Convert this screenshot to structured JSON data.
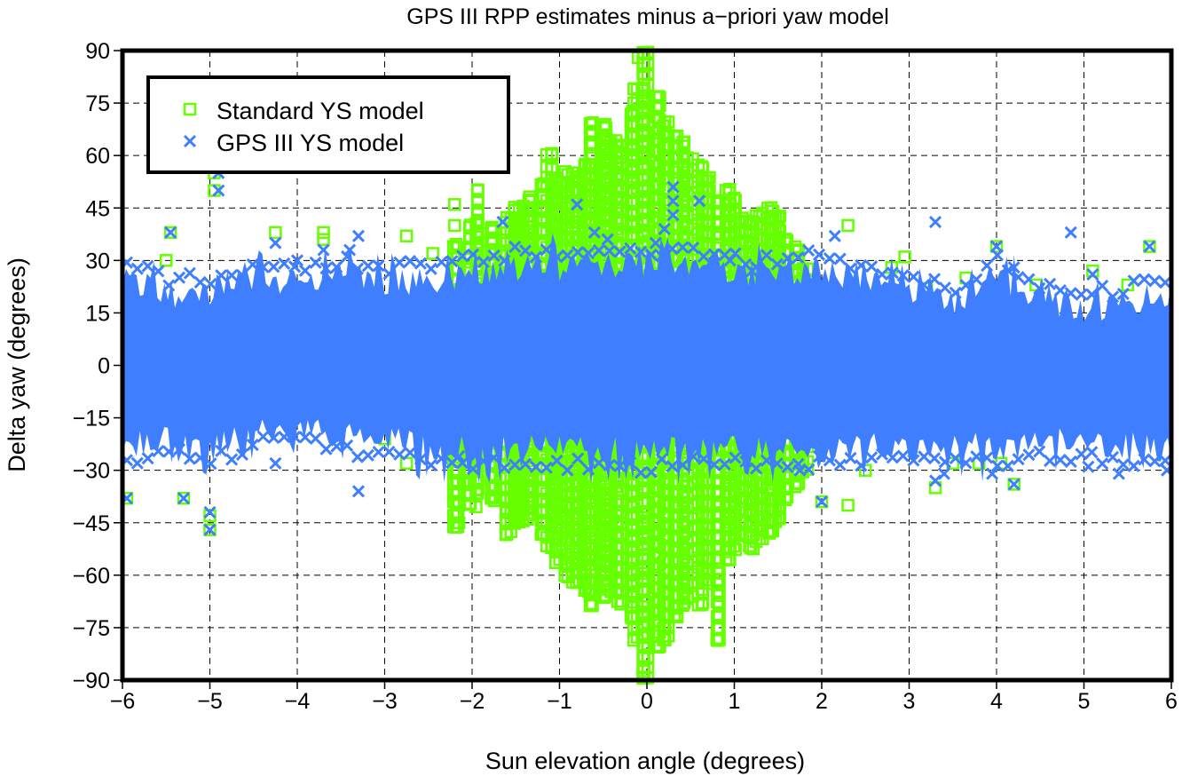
{
  "chart_data": {
    "type": "scatter",
    "title": "GPS III RPP estimates minus a−priori yaw model",
    "xlabel": "Sun elevation angle (degrees)",
    "ylabel": "Delta yaw (degrees)",
    "xlim": [
      -6,
      6
    ],
    "ylim": [
      -90,
      90
    ],
    "x_ticks": [
      "−6",
      "−5",
      "−4",
      "−3",
      "−2",
      "−1",
      "0",
      "1",
      "2",
      "3",
      "4",
      "5",
      "6"
    ],
    "x_tick_values": [
      -6,
      -5,
      -4,
      -3,
      -2,
      -1,
      0,
      1,
      2,
      3,
      4,
      5,
      6
    ],
    "y_ticks": [
      "90",
      "75",
      "60",
      "45",
      "30",
      "15",
      "0",
      "−15",
      "−30",
      "−45",
      "−60",
      "−75",
      "−90"
    ],
    "y_tick_values": [
      90,
      75,
      60,
      45,
      30,
      15,
      0,
      -15,
      -30,
      -45,
      -60,
      -75,
      -90
    ],
    "grid": true,
    "legend_position": "top-left",
    "series": [
      {
        "name": "Standard YS model",
        "marker": "square-open",
        "color": "#66ff00",
        "dense_columns": {
          "x": [
            -2.2,
            -2.0,
            -1.9,
            -1.8,
            -1.7,
            -1.6,
            -1.5,
            -1.4,
            -1.3,
            -1.2,
            -1.1,
            -1.0,
            -0.9,
            -0.8,
            -0.7,
            -0.6,
            -0.5,
            -0.4,
            -0.3,
            -0.2,
            -0.1,
            0.0,
            0.1,
            0.2,
            0.3,
            0.4,
            0.5,
            0.6,
            0.7,
            0.8,
            0.9,
            1.0,
            1.1,
            1.2,
            1.3,
            1.4,
            1.5,
            1.6,
            1.7,
            1.8
          ],
          "y_max": [
            36,
            42,
            52,
            40,
            34,
            42,
            45,
            48,
            50,
            52,
            62,
            56,
            56,
            55,
            60,
            72,
            70,
            66,
            66,
            73,
            80,
            90,
            78,
            72,
            68,
            66,
            60,
            58,
            56,
            48,
            52,
            50,
            42,
            44,
            45,
            46,
            44,
            38,
            34,
            30
          ],
          "y_min": [
            -46,
            -40,
            -36,
            -38,
            -38,
            -48,
            -45,
            -44,
            -42,
            -48,
            -52,
            -56,
            -60,
            -62,
            -64,
            -68,
            -66,
            -64,
            -68,
            -72,
            -78,
            -90,
            -80,
            -78,
            -72,
            -68,
            -66,
            -68,
            -62,
            -78,
            -56,
            -52,
            -48,
            -52,
            -50,
            -48,
            -44,
            -38,
            -34,
            -30
          ]
        },
        "points": [
          [
            -5.45,
            38
          ],
          [
            -5.5,
            30
          ],
          [
            -5.95,
            -38
          ],
          [
            -4.25,
            38
          ],
          [
            -3.7,
            38
          ],
          [
            -3.7,
            36
          ],
          [
            -2.75,
            37
          ],
          [
            -2.45,
            32
          ],
          [
            -2.2,
            46
          ],
          [
            -2.2,
            40
          ],
          [
            -2.1,
            -33
          ],
          [
            -2.15,
            -40
          ],
          [
            -2.15,
            -45
          ],
          [
            -2.75,
            -28
          ],
          [
            -3.0,
            -21
          ],
          [
            2.3,
            40
          ],
          [
            2.3,
            -40
          ],
          [
            2.0,
            -39
          ],
          [
            2.5,
            -30
          ],
          [
            1.75,
            -28
          ],
          [
            3.3,
            -35
          ],
          [
            3.5,
            -28
          ],
          [
            3.8,
            -28
          ],
          [
            4.2,
            -34
          ],
          [
            4.05,
            -28
          ],
          [
            0.8,
            -78
          ],
          [
            1.4,
            -45
          ],
          [
            1.4,
            -48
          ],
          [
            3.2,
            22
          ],
          [
            3.65,
            25
          ],
          [
            4.45,
            23
          ],
          [
            5.5,
            23
          ],
          [
            4.0,
            34
          ],
          [
            5.75,
            34
          ],
          [
            5.1,
            27
          ],
          [
            2.8,
            28
          ],
          [
            2.95,
            31
          ],
          [
            -1.95,
            -30
          ],
          [
            -5.0,
            -47
          ],
          [
            -5.0,
            -43
          ],
          [
            -5.3,
            -38
          ],
          [
            -0.1,
            88
          ],
          [
            -4.95,
            50
          ],
          [
            -4.95,
            55
          ]
        ]
      },
      {
        "name": "GPS III YS model",
        "marker": "x",
        "color": "#3f7fff",
        "dense_band": {
          "x": [
            -6,
            -5.5,
            -5,
            -4.5,
            -4,
            -3.5,
            -3,
            -2.5,
            -2,
            -1.5,
            -1,
            -0.5,
            0,
            0.5,
            1,
            1.5,
            2,
            2.5,
            3,
            3.5,
            4,
            4.5,
            5,
            5.5,
            6
          ],
          "y_max": [
            30,
            24,
            25,
            28,
            28,
            30,
            28,
            28,
            30,
            32,
            32,
            33,
            32,
            33,
            30,
            30,
            32,
            28,
            26,
            22,
            30,
            22,
            20,
            22,
            25
          ],
          "y_min": [
            -28,
            -25,
            -28,
            -22,
            -22,
            -24,
            -25,
            -28,
            -28,
            -28,
            -28,
            -28,
            -29,
            -28,
            -28,
            -28,
            -28,
            -27,
            -28,
            -26,
            -28,
            -26,
            -26,
            -27,
            -28
          ]
        },
        "points": [
          [
            -4.9,
            55
          ],
          [
            -4.9,
            50
          ],
          [
            -5.45,
            38
          ],
          [
            -5.95,
            -38
          ],
          [
            -5.3,
            -38
          ],
          [
            -5.0,
            -42
          ],
          [
            -5.0,
            -47
          ],
          [
            -3.3,
            37
          ],
          [
            -3.3,
            -36
          ],
          [
            -4.25,
            35
          ],
          [
            -4.0,
            30
          ],
          [
            -3.7,
            33
          ],
          [
            -3.4,
            33
          ],
          [
            -1.65,
            41
          ],
          [
            -0.8,
            46
          ],
          [
            -0.45,
            36
          ],
          [
            -0.6,
            38
          ],
          [
            0.3,
            51
          ],
          [
            0.3,
            47
          ],
          [
            0.6,
            47
          ],
          [
            0.3,
            43
          ],
          [
            0.2,
            39
          ],
          [
            0.1,
            35
          ],
          [
            0.95,
            30
          ],
          [
            1.2,
            27
          ],
          [
            2.0,
            -39
          ],
          [
            2.15,
            37
          ],
          [
            3.3,
            41
          ],
          [
            3.3,
            -33
          ],
          [
            4.0,
            34
          ],
          [
            4.2,
            28
          ],
          [
            4.2,
            -34
          ],
          [
            4.85,
            38
          ],
          [
            5.1,
            26
          ],
          [
            5.75,
            34
          ],
          [
            5.4,
            -31
          ],
          [
            5.05,
            -29
          ],
          [
            5.95,
            -30
          ],
          [
            3.95,
            -31
          ],
          [
            3.4,
            -31
          ],
          [
            1.75,
            -30
          ],
          [
            -4.25,
            -28
          ],
          [
            -2.15,
            -26
          ]
        ]
      }
    ]
  }
}
